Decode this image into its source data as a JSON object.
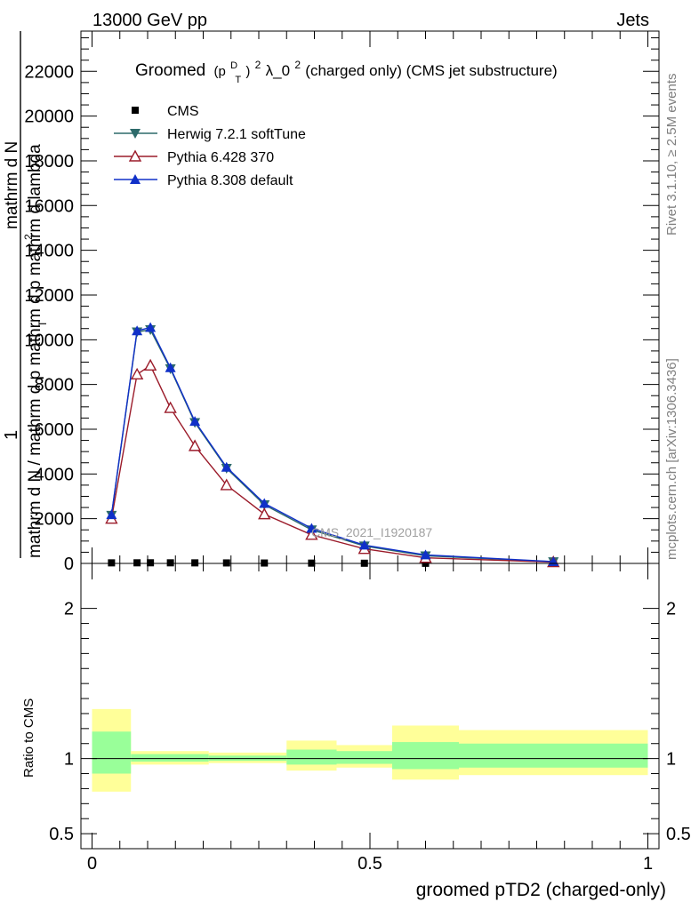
{
  "header": {
    "left": "13000 GeV pp",
    "right": "Jets"
  },
  "side_labels": {
    "rivet": "Rivet 3.1.10, ≥ 2.5M events",
    "mcplots": "mcplots.cern.ch [arXiv:1306.3436]"
  },
  "watermark": "CMS_2021_I1920187",
  "colors": {
    "cms": "#000000",
    "herwig": "#2d6a6a",
    "pythia6": "#9b1b2a",
    "pythia8": "#1030c8",
    "band_outer": "#ffff99",
    "band_inner": "#99ff99"
  },
  "chart_data": [
    {
      "type": "line",
      "title": "Groomed (p_T^D)^2 λ_0^2  (charged only) (CMS jet substructure)",
      "title_parts": {
        "prefix": "Groomed",
        "sym_p": "(p",
        "sup_d": "D",
        "sub_t": "T",
        "sym_close": ")",
        "sup_2": "2",
        "lam": " λ_0",
        "sup_2b": "2",
        "rest": "  (charged only) (CMS jet substructure)"
      },
      "ylabel_top": "1",
      "ylabel_main": "mathrm d N / mathrm d p mathrm d p mathrm d lambda",
      "ylabel_frac_num": "mathrm d N",
      "ylabel_sub": "T",
      "ylabel_sup": "2",
      "ylim": [
        0,
        23800
      ],
      "y_ticks": [
        0,
        2000,
        4000,
        6000,
        8000,
        10000,
        12000,
        14000,
        16000,
        18000,
        20000,
        22000
      ],
      "y_tick_labels": [
        "0",
        "2000",
        "4000",
        "6000",
        "8000",
        "10000",
        "12000",
        "14000",
        "16000",
        "18000",
        "20000",
        "22000"
      ],
      "xlim": [
        -0.02,
        1.02
      ],
      "legend_position": "top-left",
      "series": [
        {
          "name": "CMS",
          "key": "cms",
          "marker": "square",
          "x": [
            0.035,
            0.081,
            0.105,
            0.141,
            0.185,
            0.242,
            0.31,
            0.395,
            0.49,
            0.6,
            0.83
          ],
          "y": [
            25,
            27,
            28,
            27,
            25,
            22,
            18,
            13,
            8,
            5,
            2
          ]
        },
        {
          "name": "Herwig 7.2.1 softTune",
          "key": "herwig",
          "marker": "triangle-down",
          "x": [
            0.035,
            0.081,
            0.105,
            0.141,
            0.185,
            0.242,
            0.31,
            0.395,
            0.49,
            0.6,
            0.83
          ],
          "y": [
            2150,
            10350,
            10450,
            8700,
            6300,
            4250,
            2620,
            1500,
            780,
            340,
            75
          ]
        },
        {
          "name": "Pythia 6.428 370",
          "key": "pythia6",
          "marker": "triangle-up-open",
          "x": [
            0.035,
            0.081,
            0.105,
            0.141,
            0.185,
            0.242,
            0.31,
            0.395,
            0.49,
            0.6,
            0.83
          ],
          "y": [
            2000,
            8450,
            8850,
            6950,
            5250,
            3500,
            2200,
            1280,
            650,
            250,
            60
          ]
        },
        {
          "name": "Pythia 8.308 default",
          "key": "pythia8",
          "marker": "triangle-up",
          "x": [
            0.035,
            0.081,
            0.105,
            0.141,
            0.185,
            0.242,
            0.31,
            0.395,
            0.49,
            0.6,
            0.83
          ],
          "y": [
            2180,
            10400,
            10550,
            8750,
            6350,
            4300,
            2680,
            1570,
            820,
            380,
            80
          ]
        }
      ]
    },
    {
      "type": "area",
      "xlabel": "groomed pTD2 (charged-only)",
      "ylabel": "Ratio to CMS",
      "ylim": [
        0.4,
        2.3
      ],
      "y_ticks": [
        0.5,
        1,
        2
      ],
      "y_tick_labels": [
        "0.5",
        "1",
        "2"
      ],
      "x_ticks": [
        0,
        0.5,
        1
      ],
      "x_tick_labels": [
        "0",
        "0.5",
        "1"
      ],
      "xlim": [
        -0.02,
        1.02
      ],
      "bins": [
        {
          "lo": 0.0,
          "hi": 0.07,
          "outer": [
            0.78,
            1.33
          ],
          "inner": [
            0.9,
            1.18
          ]
        },
        {
          "lo": 0.07,
          "hi": 0.21,
          "outer": [
            0.96,
            1.05
          ],
          "inner": [
            0.98,
            1.03
          ]
        },
        {
          "lo": 0.21,
          "hi": 0.35,
          "outer": [
            0.97,
            1.04
          ],
          "inner": [
            0.985,
            1.02
          ]
        },
        {
          "lo": 0.35,
          "hi": 0.44,
          "outer": [
            0.92,
            1.12
          ],
          "inner": [
            0.96,
            1.06
          ]
        },
        {
          "lo": 0.44,
          "hi": 0.54,
          "outer": [
            0.94,
            1.09
          ],
          "inner": [
            0.965,
            1.05
          ]
        },
        {
          "lo": 0.54,
          "hi": 0.66,
          "outer": [
            0.86,
            1.22
          ],
          "inner": [
            0.93,
            1.11
          ]
        },
        {
          "lo": 0.66,
          "hi": 1.0,
          "outer": [
            0.89,
            1.19
          ],
          "inner": [
            0.94,
            1.1
          ]
        }
      ]
    }
  ]
}
